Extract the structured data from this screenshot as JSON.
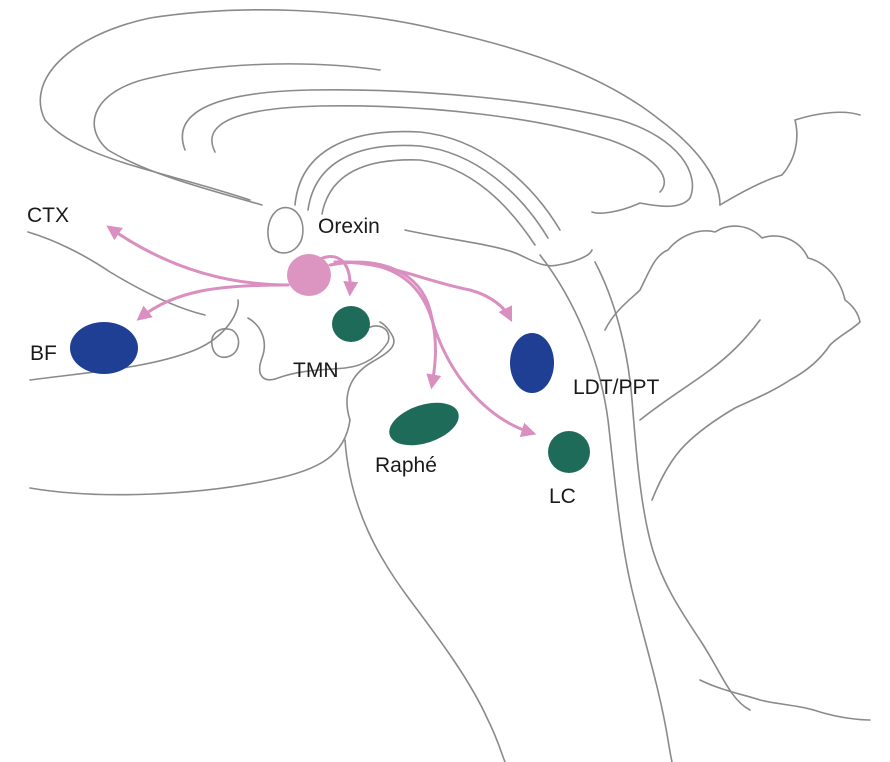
{
  "labels": {
    "orexin": "Orexin",
    "ctx": "CTX",
    "bf": "BF",
    "tmn": "TMN",
    "raphe": "Raphé",
    "ldt_ppt": "LDT/PPT",
    "lc": "LC"
  },
  "colors": {
    "orexin_nucleus": "#dc94c1",
    "arrow": "#d98fbf",
    "cholinergic": "#1e3f94",
    "monoaminergic": "#1f6b5a",
    "outline": "#8a8a8a"
  }
}
